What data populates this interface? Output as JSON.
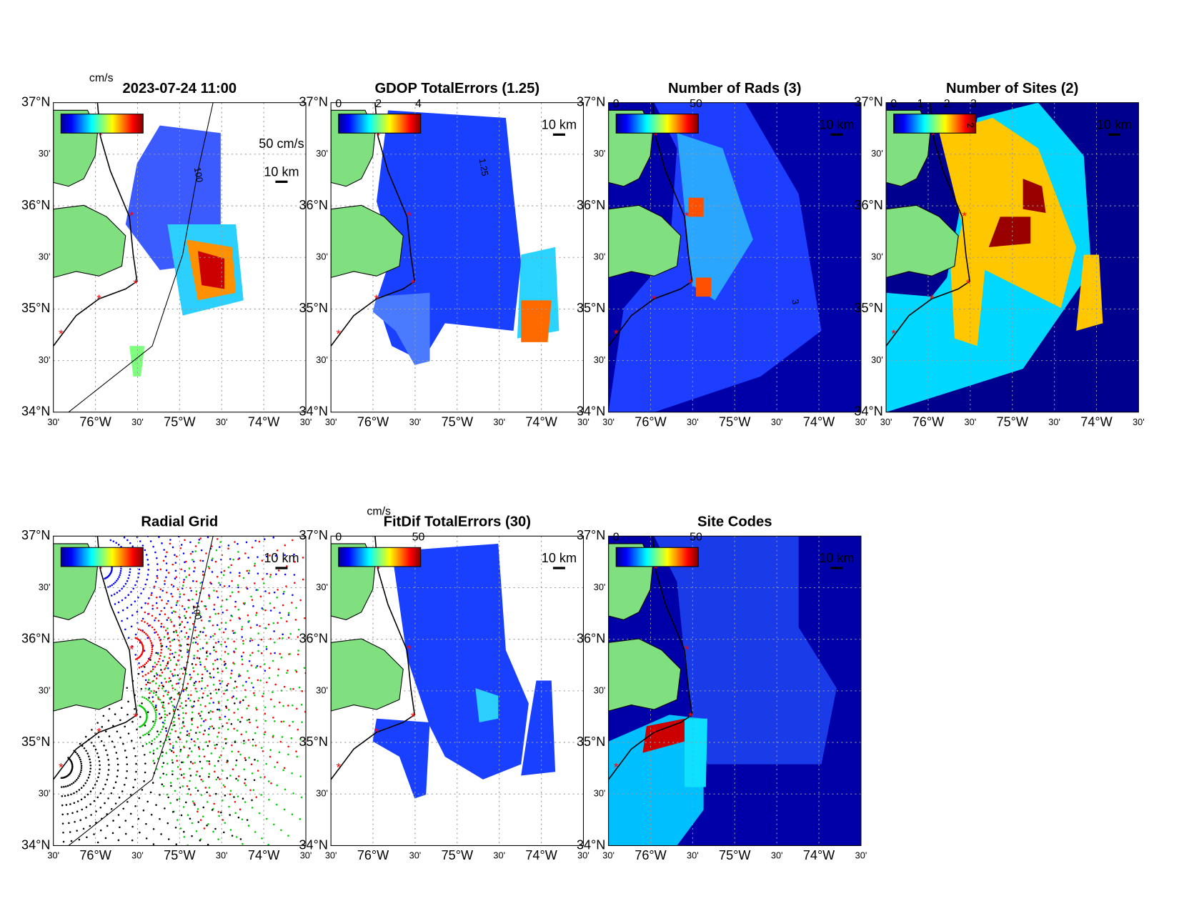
{
  "axes": {
    "lat_labels": [
      "37°N",
      "30'",
      "36°N",
      "30'",
      "35°N",
      "30'",
      "34°N"
    ],
    "lon_labels": [
      "30'",
      "76°W",
      "30'",
      "75°W",
      "30'",
      "74°W",
      "30'"
    ]
  },
  "panels": [
    {
      "title": "2023-07-24 11:00",
      "unit": "cm/s",
      "vector_scale_label": "50 cm/s",
      "scale_bar_label": "10 km",
      "contour_label": "100"
    },
    {
      "title": "GDOP TotalErrors (1.25)",
      "colorbar_ticks": [
        0,
        2,
        4
      ],
      "scale_bar_label": "10 km",
      "contour_label": "1.25"
    },
    {
      "title": "Number of Rads (3)",
      "colorbar_ticks": [
        0,
        50
      ],
      "scale_bar_label": "10 km",
      "contour_label": "3"
    },
    {
      "title": "Number of Sites (2)",
      "colorbar_ticks": [
        0,
        1,
        2,
        3
      ],
      "scale_bar_label": "10 km",
      "contour_label": "2"
    },
    {
      "title": "Radial Grid",
      "scale_bar_label": "10 km",
      "contour_label": "100"
    },
    {
      "title": "FitDif TotalErrors (30)",
      "unit": "cm/s",
      "colorbar_ticks": [
        0,
        50
      ],
      "scale_bar_label": "10 km"
    },
    {
      "title": "Site Codes",
      "colorbar_ticks": [
        0,
        50
      ],
      "scale_bar_label": "10 km"
    }
  ]
}
